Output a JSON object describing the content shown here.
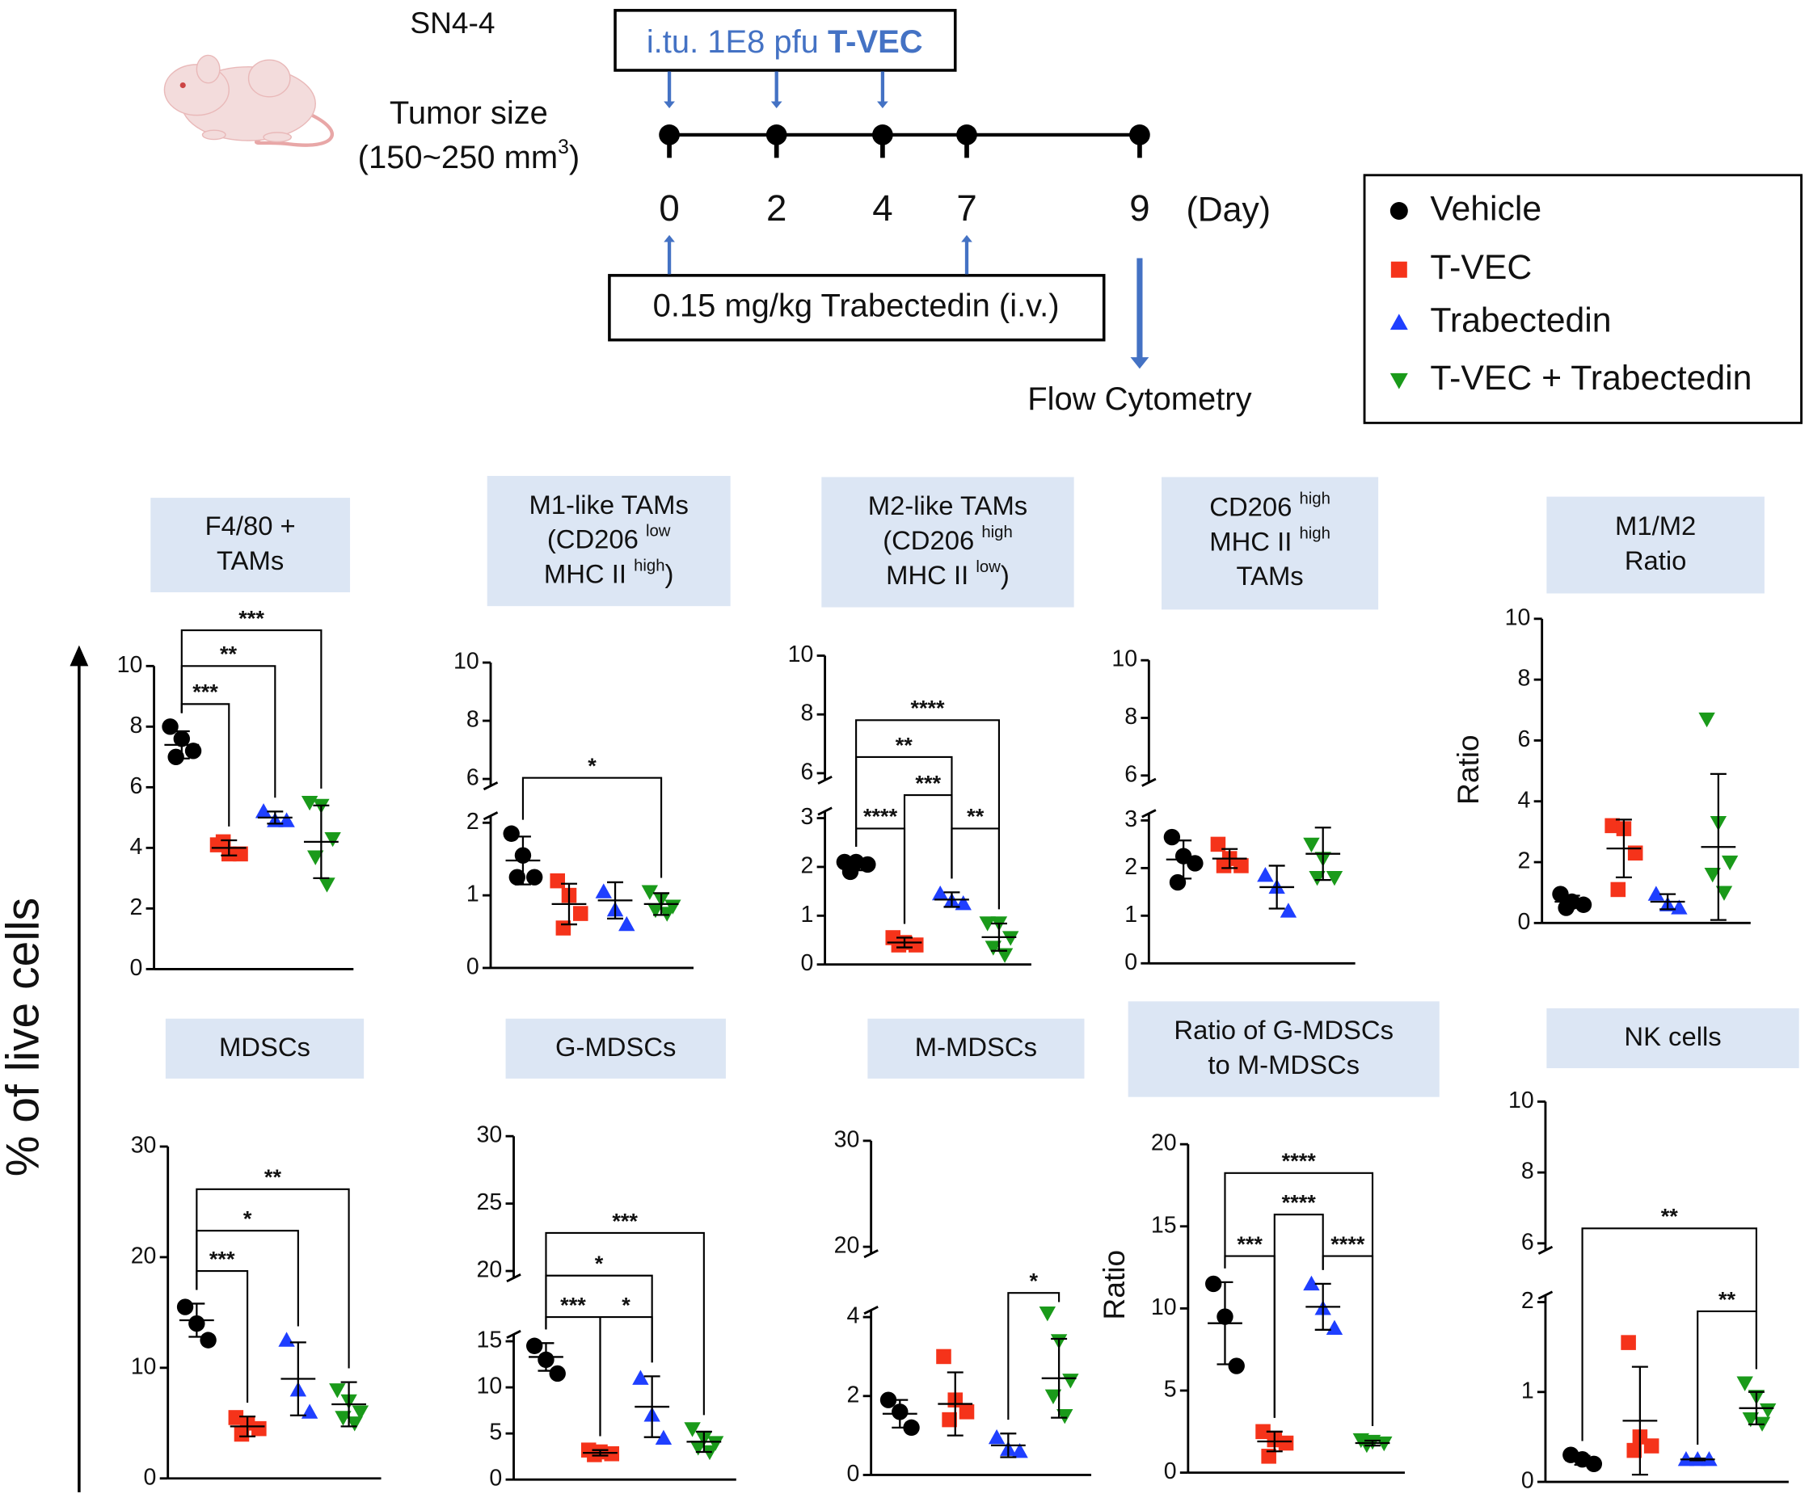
{
  "schematic": {
    "model": "SN4-4",
    "tumor_size": [
      "Tumor size",
      [
        "(150~250 mm",
        {
          "text": "3",
          "sup": true
        },
        ")"
      ]
    ],
    "tvec_box": [
      "i.tu. 1E8 pfu ",
      {
        "text": "T-VEC",
        "bold": true
      }
    ],
    "days": [
      0,
      2,
      4,
      7,
      9
    ],
    "day_unit": "(Day)",
    "tvec_days": [
      0,
      2,
      4
    ],
    "trab_days": [
      0,
      7
    ],
    "trab_box": "0.15 mg/kg Trabectedin (i.v.)",
    "endpoint_day": 9,
    "endpoint": "Flow Cytometry"
  },
  "legend": [
    {
      "name": "Vehicle",
      "color": "#000000",
      "marker": "circle"
    },
    {
      "name": "T-VEC",
      "color": "#f5331a",
      "marker": "square"
    },
    {
      "name": "Trabectedin",
      "color": "#1f3fff",
      "marker": "triangle-up"
    },
    {
      "name": "T-VEC + Trabectedin",
      "color": "#1a9a1a",
      "marker": "triangle-down"
    }
  ],
  "y_axis_label": "% of live cells",
  "chart_data": [
    {
      "type": "dotplot",
      "title": [
        [
          "F4/80 +"
        ],
        [
          "TAMs"
        ]
      ],
      "ylim": [
        0,
        10
      ],
      "yticks": [
        0,
        2,
        4,
        6,
        8,
        10
      ],
      "series": [
        {
          "values": [
            8.0,
            7.6,
            7.2,
            7.0
          ],
          "mean": 7.4,
          "sd": 0.45
        },
        {
          "values": [
            4.1,
            3.8,
            3.8,
            4.2
          ],
          "mean": 4.0,
          "sd": 0.25
        },
        {
          "values": [
            5.2,
            4.9,
            4.9
          ],
          "mean": 5.0,
          "sd": 0.2
        },
        {
          "values": [
            5.5,
            5.4,
            4.3,
            3.7,
            2.8
          ],
          "mean": 4.2,
          "sd": 1.2
        }
      ],
      "brackets": [
        {
          "from": 0,
          "to": 1,
          "label": "***"
        },
        {
          "from": 0,
          "to": 2,
          "label": "**"
        },
        {
          "from": 0,
          "to": 3,
          "label": "***"
        }
      ]
    },
    {
      "type": "dotplot",
      "title": [
        [
          "M1-like TAMs"
        ],
        [
          "(CD206 ",
          {
            "text": "low",
            "sup": true
          }
        ],
        [
          "MHC II ",
          {
            "text": "high",
            "sup": true
          },
          ")"
        ]
      ],
      "ylim": [
        0,
        2
      ],
      "yticks": [
        0,
        1,
        2
      ],
      "upper_ylim": [
        6,
        10
      ],
      "upper_yticks": [
        6,
        8,
        10
      ],
      "series": [
        {
          "values": [
            1.85,
            1.55,
            1.25,
            1.25
          ],
          "mean": 1.48,
          "sd": 0.33
        },
        {
          "values": [
            1.2,
            1.0,
            0.75,
            0.55
          ],
          "mean": 0.88,
          "sd": 0.28
        },
        {
          "values": [
            1.05,
            0.8,
            0.6
          ],
          "mean": 0.93,
          "sd": 0.25
        },
        {
          "values": [
            1.05,
            0.95,
            0.85,
            0.8,
            0.75
          ],
          "mean": 0.88,
          "sd": 0.15
        }
      ],
      "brackets": [
        {
          "from": 0,
          "to": 3,
          "label": "*"
        }
      ]
    },
    {
      "type": "dotplot",
      "title": [
        [
          "M2-like TAMs"
        ],
        [
          "(CD206 ",
          {
            "text": "high",
            "sup": true
          }
        ],
        [
          "MHC II ",
          {
            "text": "low",
            "sup": true
          },
          ")"
        ]
      ],
      "ylim": [
        0,
        3
      ],
      "yticks": [
        0,
        1,
        2,
        3
      ],
      "upper_ylim": [
        6,
        10
      ],
      "upper_yticks": [
        6,
        8,
        10
      ],
      "series": [
        {
          "values": [
            2.1,
            2.1,
            2.05,
            1.9
          ],
          "mean": 2.03,
          "sd": 0.1
        },
        {
          "values": [
            0.55,
            0.45,
            0.4,
            0.4
          ],
          "mean": 0.45,
          "sd": 0.1
        },
        {
          "values": [
            1.45,
            1.3,
            1.25
          ],
          "mean": 1.33,
          "sd": 0.15
        },
        {
          "values": [
            0.85,
            0.85,
            0.55,
            0.35,
            0.2
          ],
          "mean": 0.56,
          "sd": 0.28
        }
      ],
      "brackets": [
        {
          "from": 0,
          "to": 1,
          "label": "****"
        },
        {
          "from": 2,
          "to": 3,
          "label": "**"
        },
        {
          "from": 1,
          "to": 2,
          "label": "***"
        },
        {
          "from": 0,
          "to": 2,
          "label": "**"
        },
        {
          "from": 0,
          "to": 3,
          "label": "****"
        }
      ]
    },
    {
      "type": "dotplot",
      "title": [
        [
          "CD206 ",
          {
            "text": "high",
            "sup": true
          }
        ],
        [
          "MHC II ",
          {
            "text": "high",
            "sup": true
          }
        ],
        [
          "TAMs"
        ]
      ],
      "ylim": [
        0,
        3
      ],
      "yticks": [
        0,
        1,
        2,
        3
      ],
      "upper_ylim": [
        6,
        10
      ],
      "upper_yticks": [
        6,
        8,
        10
      ],
      "series": [
        {
          "values": [
            2.65,
            2.25,
            2.1,
            1.7
          ],
          "mean": 2.18,
          "sd": 0.4
        },
        {
          "values": [
            2.5,
            2.2,
            2.05,
            2.05
          ],
          "mean": 2.2,
          "sd": 0.2
        },
        {
          "values": [
            1.85,
            1.6,
            1.1
          ],
          "mean": 1.6,
          "sd": 0.45
        },
        {
          "values": [
            2.5,
            2.2,
            1.8,
            1.8
          ],
          "mean": 2.3,
          "sd": 0.55
        }
      ],
      "brackets": []
    },
    {
      "type": "dotplot",
      "title": [
        [
          "M1/M2"
        ],
        [
          "Ratio"
        ]
      ],
      "ylabel": "Ratio",
      "ylim": [
        0,
        10
      ],
      "yticks": [
        0,
        2,
        4,
        6,
        8,
        10
      ],
      "series": [
        {
          "values": [
            0.95,
            0.7,
            0.6,
            0.5
          ],
          "mean": 0.7,
          "sd": 0.2
        },
        {
          "values": [
            3.2,
            3.1,
            2.3,
            1.1
          ],
          "mean": 2.45,
          "sd": 0.95
        },
        {
          "values": [
            0.95,
            0.6,
            0.5
          ],
          "mean": 0.7,
          "sd": 0.25
        },
        {
          "values": [
            6.7,
            3.3,
            2.0,
            1.6,
            1.0
          ],
          "mean": 2.5,
          "sd": 2.4
        }
      ],
      "brackets": []
    },
    {
      "type": "dotplot",
      "title": [
        [
          "MDSCs"
        ]
      ],
      "ylim": [
        0,
        30
      ],
      "yticks": [
        0,
        10,
        20,
        30
      ],
      "series": [
        {
          "values": [
            15.5,
            14,
            12.5
          ],
          "mean": 14.3,
          "sd": 1.5
        },
        {
          "values": [
            5.5,
            5,
            4.5,
            4
          ],
          "mean": 4.7,
          "sd": 0.9
        },
        {
          "values": [
            12.5,
            8,
            6
          ],
          "mean": 9,
          "sd": 3.3
        },
        {
          "values": [
            8,
            7,
            6,
            5.5,
            5
          ],
          "mean": 6.7,
          "sd": 2
        }
      ],
      "brackets": [
        {
          "from": 0,
          "to": 1,
          "label": "***"
        },
        {
          "from": 0,
          "to": 2,
          "label": "*"
        },
        {
          "from": 0,
          "to": 3,
          "label": "**"
        }
      ]
    },
    {
      "type": "dotplot",
      "title": [
        [
          "G-MDSCs"
        ]
      ],
      "ylim": [
        0,
        15
      ],
      "yticks": [
        0,
        5,
        10,
        15
      ],
      "upper_ylim": [
        20,
        30
      ],
      "upper_yticks": [
        20,
        25,
        30
      ],
      "series": [
        {
          "values": [
            14.5,
            13,
            11.5
          ],
          "mean": 13.3,
          "sd": 1.5
        },
        {
          "values": [
            3.2,
            3,
            2.8,
            2.7
          ],
          "mean": 2.9,
          "sd": 0.3
        },
        {
          "values": [
            11,
            7,
            4.5
          ],
          "mean": 7.9,
          "sd": 3.3
        },
        {
          "values": [
            5.5,
            4.5,
            4,
            3.5,
            3
          ],
          "mean": 4.1,
          "sd": 1.1
        }
      ],
      "brackets": [
        {
          "from": 0,
          "to": 1,
          "label": "***"
        },
        {
          "from": 1,
          "to": 2,
          "label": "*"
        },
        {
          "from": 0,
          "to": 2,
          "label": "*"
        },
        {
          "from": 0,
          "to": 3,
          "label": "***"
        }
      ]
    },
    {
      "type": "dotplot",
      "title": [
        [
          "M-MDSCs"
        ]
      ],
      "ylim": [
        0,
        4
      ],
      "yticks": [
        0,
        2,
        4
      ],
      "upper_ylim": [
        20,
        30
      ],
      "upper_yticks": [
        20,
        30
      ],
      "series": [
        {
          "values": [
            1.9,
            1.6,
            1.2
          ],
          "mean": 1.55,
          "sd": 0.35
        },
        {
          "values": [
            3.0,
            1.9,
            1.6,
            1.4
          ],
          "mean": 1.8,
          "sd": 0.8
        },
        {
          "values": [
            0.95,
            0.65,
            0.6
          ],
          "mean": 0.75,
          "sd": 0.3
        },
        {
          "values": [
            4.1,
            3.4,
            2.4,
            2.0,
            1.5
          ],
          "mean": 2.45,
          "sd": 1.0
        }
      ],
      "brackets": [
        {
          "from": 2,
          "to": 3,
          "label": "*"
        }
      ]
    },
    {
      "type": "dotplot",
      "title": [
        [
          "Ratio of G-MDSCs"
        ],
        [
          "to M-MDSCs"
        ]
      ],
      "ylabel": "Ratio",
      "ylim": [
        0,
        20
      ],
      "yticks": [
        0,
        5,
        10,
        15,
        20
      ],
      "series": [
        {
          "values": [
            11.5,
            9.5,
            6.5
          ],
          "mean": 9.1,
          "sd": 2.5
        },
        {
          "values": [
            2.5,
            2,
            1.8,
            1
          ],
          "mean": 1.9,
          "sd": 0.6
        },
        {
          "values": [
            11.5,
            10,
            8.8
          ],
          "mean": 10.1,
          "sd": 1.4
        },
        {
          "values": [
            2,
            1.9,
            1.8,
            1.7
          ],
          "mean": 1.8,
          "sd": 0.15
        }
      ],
      "brackets": [
        {
          "from": 0,
          "to": 1,
          "label": "***"
        },
        {
          "from": 2,
          "to": 3,
          "label": "****"
        },
        {
          "from": 1,
          "to": 2,
          "label": "****"
        },
        {
          "from": 0,
          "to": 3,
          "label": "****"
        }
      ]
    },
    {
      "type": "dotplot",
      "title": [
        [
          "NK cells"
        ]
      ],
      "ylim": [
        0,
        2
      ],
      "yticks": [
        0,
        1,
        2
      ],
      "upper_ylim": [
        6,
        10
      ],
      "upper_yticks": [
        6,
        8,
        10
      ],
      "series": [
        {
          "values": [
            0.3,
            0.25,
            0.2
          ],
          "mean": 0.24,
          "sd": 0.05
        },
        {
          "values": [
            1.55,
            0.5,
            0.4,
            0.35
          ],
          "mean": 0.68,
          "sd": 0.6
        },
        {
          "values": [
            0.25,
            0.25,
            0.25
          ],
          "mean": 0.25,
          "sd": 0.01
        },
        {
          "values": [
            1.1,
            0.95,
            0.8,
            0.7,
            0.65
          ],
          "mean": 0.82,
          "sd": 0.18
        }
      ],
      "brackets": [
        {
          "from": 2,
          "to": 3,
          "label": "**"
        },
        {
          "from": 0,
          "to": 3,
          "label": "**"
        }
      ]
    }
  ]
}
